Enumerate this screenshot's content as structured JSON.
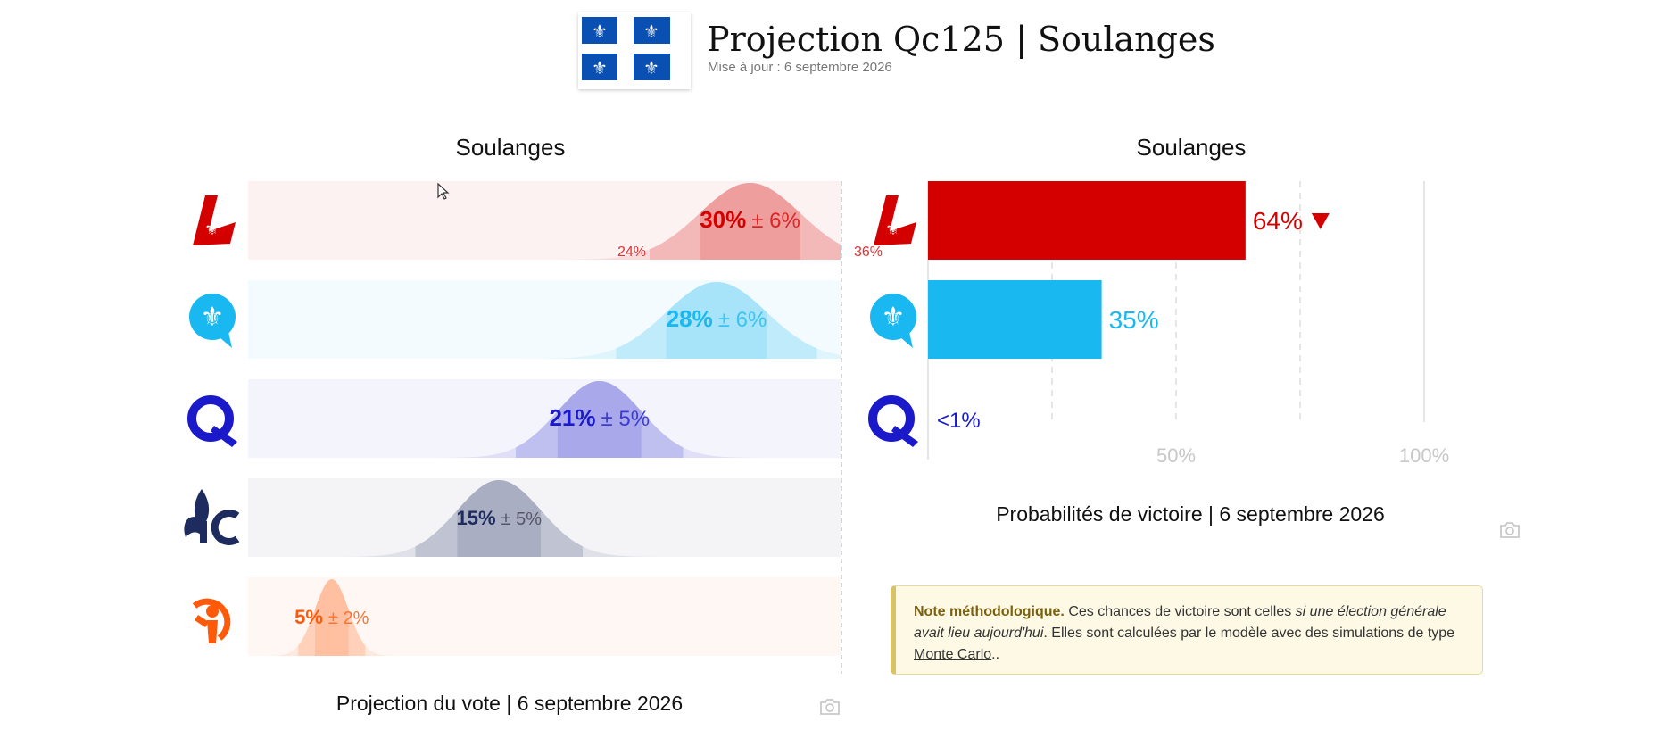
{
  "header": {
    "title": "Projection Qc125 | Soulanges",
    "updated": "Mise à jour : 6 septembre 2026",
    "flag_icon": "quebec-flag-icon"
  },
  "left_panel": {
    "title": "Soulanges",
    "caption": "Projection du vote | 6 septembre 2026",
    "camera_icon": "camera-icon"
  },
  "right_panel": {
    "title": "Soulanges",
    "caption": "Probabilités de victoire | 6 septembre 2026",
    "camera_icon": "camera-icon"
  },
  "note": {
    "bold": "Note méthodologique.",
    "text1": " Ces chances de victoire sont celles ",
    "italic": "si une élection générale avait lieu aujourd'hui",
    "text2": ". Elles sont calculées par le modèle avec des simulations de type ",
    "link": "Monte Carlo",
    "text3": ".."
  },
  "colors": {
    "plq": "#d40000",
    "caq": "#19b8f0",
    "pq": "#1a1acb",
    "pcq": "#1d2b5e",
    "qs": "#ff5a0a"
  },
  "chart_data": [
    {
      "type": "bar",
      "subtype": "vote-projection",
      "title": "Soulanges",
      "caption": "Projection du vote | 6 septembre 2026",
      "series": [
        {
          "party_icon": "liberal-party-icon",
          "color": "#d40000",
          "value": 30,
          "moe": 6,
          "label": "30%",
          "moe_label": "± 6%",
          "low_label": "24%",
          "high_label": "36%"
        },
        {
          "party_icon": "caq-party-icon",
          "color": "#19b8f0",
          "value": 28,
          "moe": 6,
          "label": "28%",
          "moe_label": "± 6%"
        },
        {
          "party_icon": "pq-party-icon",
          "color": "#1a1acb",
          "value": 21,
          "moe": 5,
          "label": "21%",
          "moe_label": "± 5%"
        },
        {
          "party_icon": "conservative-party-icon",
          "color": "#1d2b5e",
          "value": 15,
          "moe": 5,
          "label": "15%",
          "moe_label": "± 5%"
        },
        {
          "party_icon": "qs-party-icon",
          "color": "#ff5a0a",
          "value": 5,
          "moe": 2,
          "label": "5%",
          "moe_label": "± 2%"
        }
      ],
      "xlim": [
        0,
        40
      ]
    },
    {
      "type": "bar",
      "subtype": "win-probability",
      "title": "Soulanges",
      "caption": "Probabilités de victoire | 6 septembre 2026",
      "series": [
        {
          "party_icon": "liberal-party-icon",
          "color": "#d40000",
          "value": 64,
          "label": "64%",
          "trend_icon": "down-triangle-icon"
        },
        {
          "party_icon": "caq-party-icon",
          "color": "#19b8f0",
          "value": 35,
          "label": "35%"
        },
        {
          "party_icon": "pq-party-icon",
          "color": "#1a1acb",
          "value": 0.5,
          "label": "<1%"
        }
      ],
      "xlim": [
        0,
        100
      ],
      "xticks": [
        25,
        50,
        75,
        100
      ],
      "xtick_labels": [
        "",
        "50%",
        "",
        "100%"
      ],
      "grid": true
    }
  ]
}
